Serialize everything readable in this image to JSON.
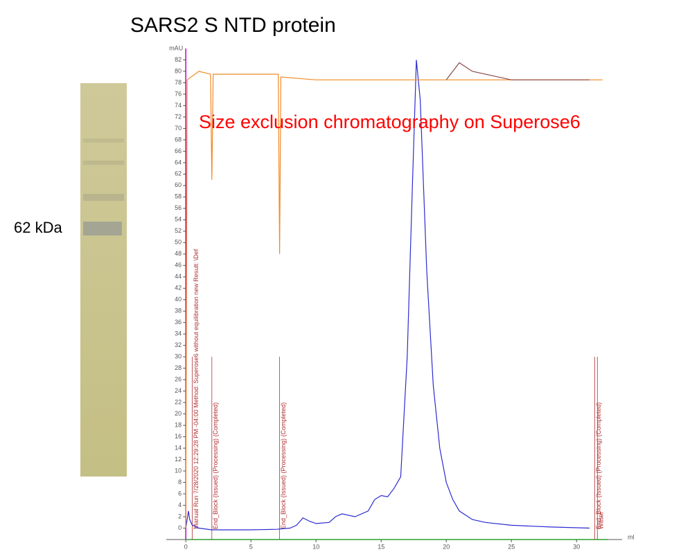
{
  "title": "SARS2 S NTD protein",
  "gel_label": "62 kDa",
  "chart_data": {
    "type": "line",
    "annotation": "Size exclusion chromatography on Superose6",
    "y_label": "mAU",
    "x_label": "ml",
    "xlim": [
      -1.5,
      33.5
    ],
    "ylim": [
      -2,
      84
    ],
    "xticks": [
      0,
      5,
      10,
      15,
      20,
      25,
      30
    ],
    "yticks": [
      0,
      2,
      4,
      6,
      8,
      10,
      12,
      14,
      16,
      18,
      20,
      22,
      24,
      26,
      28,
      30,
      32,
      34,
      36,
      38,
      40,
      42,
      44,
      46,
      48,
      50,
      52,
      54,
      56,
      58,
      60,
      62,
      64,
      66,
      68,
      70,
      72,
      74,
      76,
      78,
      80,
      82
    ],
    "series": [
      {
        "color": "#2b2bd0",
        "x": [
          0,
          0.2,
          0.3,
          0.5,
          1,
          2,
          5,
          7,
          8,
          8.5,
          9,
          9.5,
          10,
          11,
          11.5,
          12,
          13,
          14,
          14.5,
          15,
          15.5,
          16,
          16.5,
          17,
          17.4,
          17.7,
          18,
          18.5,
          19,
          19.5,
          20,
          20.5,
          21,
          22,
          23,
          25,
          28,
          31
        ],
        "values": [
          0,
          3,
          1.5,
          0.5,
          0,
          -0.3,
          -0.3,
          -0.2,
          0,
          0.5,
          1.8,
          1.2,
          0.8,
          1,
          2,
          2.5,
          2,
          3,
          5,
          5.7,
          5.5,
          7,
          9,
          30,
          60,
          82,
          75,
          45,
          25,
          14,
          8,
          5,
          3,
          1.5,
          1,
          0.5,
          0.2,
          0
        ]
      },
      {
        "color": "#f08a24",
        "x": [
          0,
          0.1,
          1,
          1.9,
          2,
          2.1,
          7.1,
          7.2,
          7.3,
          10,
          20,
          32
        ],
        "values": [
          0,
          78.5,
          80,
          79.5,
          61,
          79.5,
          79.5,
          48,
          79,
          78.5,
          78.5,
          78.5
        ]
      },
      {
        "color": "#8a4a4a",
        "x": [
          20,
          21,
          22,
          25,
          31
        ],
        "values": [
          78.5,
          81.5,
          80,
          78.5,
          78.5
        ]
      }
    ],
    "events": [
      {
        "x": 0.5,
        "label": "Manual Run 7/28/2020 12:29:28 PM -04:00 Method: Superose6 without equilibration new Result: \\Def"
      },
      {
        "x": 2,
        "label": "End_Block (Issued) (Processing) (Completed)"
      },
      {
        "x": 7.2,
        "label": "End_Block (Issued) (Processing) (Completed)"
      },
      {
        "x": 31.4,
        "label": "End_Block (Issued) (Processing) (Completed)"
      },
      {
        "x": 31.6,
        "label": "Waste"
      }
    ]
  }
}
